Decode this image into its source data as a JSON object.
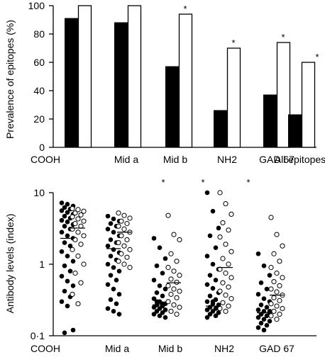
{
  "chart_data": [
    {
      "type": "bar",
      "ylabel": "Prevalence of epitopes (%)",
      "ylim": [
        0,
        100
      ],
      "yticks": [
        "0",
        "20",
        "40",
        "60",
        "80",
        "100"
      ],
      "categories": [
        "COOH",
        "Mid a",
        "Mid b",
        "NH2",
        "GAD 67",
        "All epitopes"
      ],
      "series": [
        {
          "color": "#000000",
          "values": [
            91,
            88,
            57,
            26,
            37,
            23
          ]
        },
        {
          "color": "#ffffff",
          "values": [
            100,
            100,
            94,
            70,
            74,
            60
          ]
        }
      ],
      "annotations": [
        "",
        "",
        "*",
        "*",
        "*",
        "*"
      ]
    },
    {
      "type": "scatter",
      "ylabel": "Antibody levels (index)",
      "yscale": "log",
      "ylim": [
        0.1,
        10
      ],
      "yticks": [
        "0·1",
        "1",
        "10"
      ],
      "categories": [
        "COOH",
        "Mid a",
        "Mid b",
        "NH2",
        "GAD 67"
      ],
      "annotations": [
        "",
        "",
        "*",
        "*",
        "*"
      ],
      "series": [
        {
          "marker": "filled",
          "medians": [
            2.3,
            1.65,
            0.27,
            0.26,
            0.21
          ],
          "values": [
            [
              7.2,
              6.9,
              6.5,
              6.2,
              5.9,
              5.6,
              5.3,
              5.0,
              4.7,
              4.4,
              4.1,
              3.9,
              3.6,
              3.4,
              3.1,
              2.8,
              2.5,
              2.3,
              2.0,
              1.8,
              1.5,
              1.3,
              1.1,
              0.95,
              0.8,
              0.68,
              0.58,
              0.5,
              0.42,
              0.35,
              0.3,
              0.26,
              0.12,
              0.11
            ],
            [
              4.7,
              4.3,
              4.0,
              3.7,
              3.4,
              3.1,
              2.8,
              2.5,
              2.2,
              2.0,
              1.8,
              1.6,
              1.45,
              1.3,
              1.15,
              1.0,
              0.9,
              0.8,
              0.7,
              0.6,
              0.52,
              0.45,
              0.38,
              0.32,
              0.28,
              0.24,
              0.22,
              0.2
            ],
            [
              2.3,
              1.7,
              1.2,
              0.95,
              0.75,
              0.6,
              0.5,
              0.45,
              0.4,
              0.36,
              0.33,
              0.3,
              0.28,
              0.27,
              0.26,
              0.25,
              0.24,
              0.23,
              0.22,
              0.21,
              0.2,
              0.19,
              0.18,
              0.3,
              0.28
            ],
            [
              10.0,
              5.5,
              3.2,
              2.5,
              1.7,
              1.3,
              1.0,
              0.85,
              0.7,
              0.6,
              0.52,
              0.46,
              0.4,
              0.36,
              0.32,
              0.3,
              0.28,
              0.26,
              0.25,
              0.24,
              0.23,
              0.22,
              0.21,
              0.2,
              0.19,
              0.18,
              0.3,
              0.27,
              0.25
            ],
            [
              1.4,
              0.95,
              0.7,
              0.55,
              0.45,
              0.38,
              0.33,
              0.3,
              0.27,
              0.25,
              0.23,
              0.22,
              0.21,
              0.2,
              0.19,
              0.18,
              0.17,
              0.16,
              0.15,
              0.14,
              0.13,
              0.12,
              0.22,
              0.2
            ]
          ]
        },
        {
          "marker": "open",
          "medians": [
            3.2,
            2.8,
            0.55,
            0.9,
            0.37
          ],
          "values": [
            [
              6.0,
              5.8,
              5.5,
              5.2,
              4.9,
              4.6,
              4.3,
              4.0,
              3.7,
              3.4,
              3.1,
              2.8,
              2.5,
              2.2,
              1.9,
              1.6,
              1.3,
              1.0,
              0.75,
              0.55,
              0.38,
              0.28
            ],
            [
              5.2,
              4.8,
              4.4,
              4.0,
              3.7,
              3.4,
              3.1,
              2.8,
              2.5,
              2.2,
              2.0,
              1.8,
              1.6,
              1.4,
              1.25,
              1.1,
              1.0,
              0.9
            ],
            [
              4.8,
              2.6,
              2.2,
              1.4,
              1.1,
              0.9,
              0.8,
              0.7,
              0.62,
              0.56,
              0.5,
              0.45,
              0.42,
              0.38,
              0.34,
              0.3,
              0.27,
              0.25,
              0.22,
              0.2
            ],
            [
              10.0,
              7.0,
              5.0,
              3.8,
              3.0,
              2.4,
              1.9,
              1.5,
              1.2,
              1.0,
              0.85,
              0.75,
              0.65,
              0.55,
              0.48,
              0.42,
              0.37,
              0.33,
              0.29,
              0.26,
              0.24,
              0.22
            ],
            [
              4.5,
              2.6,
              1.8,
              1.4,
              1.1,
              0.9,
              0.75,
              0.65,
              0.57,
              0.5,
              0.45,
              0.41,
              0.37,
              0.34,
              0.31,
              0.28,
              0.26,
              0.24,
              0.22,
              0.2,
              0.19,
              0.17
            ]
          ]
        }
      ]
    }
  ]
}
